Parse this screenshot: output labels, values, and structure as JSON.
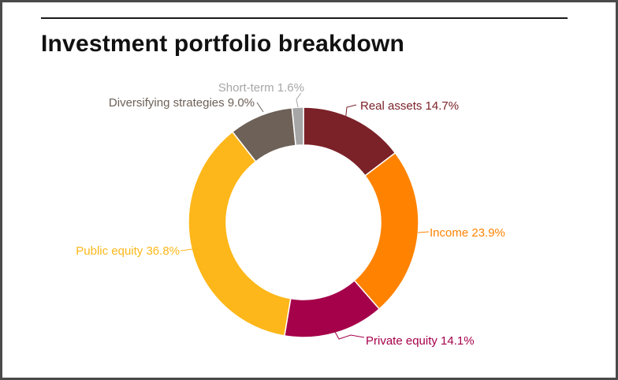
{
  "title": "Investment portfolio breakdown",
  "chart_data": {
    "type": "pie",
    "donut": true,
    "title": "Investment portfolio breakdown",
    "slices": [
      {
        "label": "Real assets",
        "value": 14.7,
        "display": "Real assets 14.7%",
        "color": "#7b2128"
      },
      {
        "label": "Income",
        "value": 23.9,
        "display": "Income 23.9%",
        "color": "#ff8300"
      },
      {
        "label": "Private equity",
        "value": 14.1,
        "display": "Private equity 14.1%",
        "color": "#a5004a"
      },
      {
        "label": "Public equity",
        "value": 36.8,
        "display": "Public equity 36.8%",
        "color": "#fdb71a"
      },
      {
        "label": "Diversifying strategies",
        "value": 9.0,
        "display": "Diversifying strategies 9.0%",
        "color": "#6d6158"
      },
      {
        "label": "Short-term",
        "value": 1.6,
        "display": "Short-term 1.6%",
        "color": "#a6a6a6"
      }
    ],
    "start": "top, clockwise",
    "legend": "none (direct labels)"
  }
}
